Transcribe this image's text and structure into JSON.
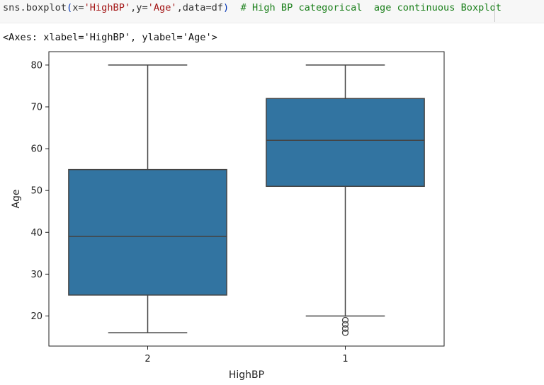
{
  "code_cell": {
    "tokens": [
      {
        "text": "sns.boxplot",
        "color": "#333333"
      },
      {
        "text": "(",
        "color": "#0033b3"
      },
      {
        "text": "x=",
        "color": "#333333"
      },
      {
        "text": "'HighBP'",
        "color": "#a31515"
      },
      {
        "text": ",y=",
        "color": "#333333"
      },
      {
        "text": "'Age'",
        "color": "#a31515"
      },
      {
        "text": ",data=df",
        "color": "#333333"
      },
      {
        "text": ")",
        "color": "#0033b3"
      },
      {
        "text": "  # High BP categorical  age continuous Boxplot",
        "color": "#1a7f1a"
      }
    ]
  },
  "output": {
    "text": "<Axes: xlabel='HighBP', ylabel='Age'>"
  },
  "chart_data": {
    "type": "box",
    "xlabel": "HighBP",
    "ylabel": "Age",
    "ylim": [
      12.8,
      83.2
    ],
    "yticks": [
      20,
      30,
      40,
      50,
      60,
      70,
      80
    ],
    "categories": [
      "2",
      "1"
    ],
    "box_color": "#3274a1",
    "boxes": [
      {
        "category": "2",
        "whisker_low": 16,
        "q1": 25,
        "median": 39,
        "q3": 55,
        "whisker_high": 80,
        "outliers": []
      },
      {
        "category": "1",
        "whisker_low": 20,
        "q1": 51,
        "median": 62,
        "q3": 72,
        "whisker_high": 80,
        "outliers": [
          16,
          17,
          18,
          19
        ]
      }
    ],
    "grid": false
  }
}
